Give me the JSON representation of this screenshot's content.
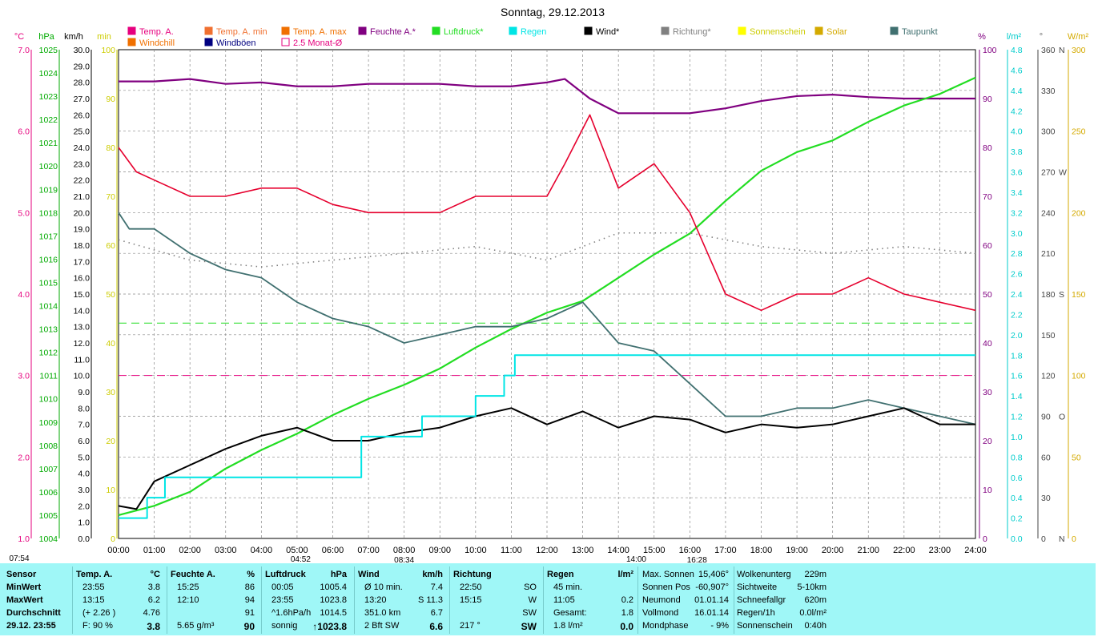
{
  "title": "Sonntag, 29.12.2013",
  "legend": [
    {
      "label": "Temp. A.",
      "color": "#e6007e",
      "row": 0,
      "col": 0
    },
    {
      "label": "Temp. A. min",
      "color": "#f07030",
      "row": 0,
      "col": 1
    },
    {
      "label": "Temp. A. max",
      "color": "#f07000",
      "row": 0,
      "col": 2
    },
    {
      "label": "Feuchte A.*",
      "color": "#800080",
      "row": 0,
      "col": 3
    },
    {
      "label": "Luftdruck*",
      "color": "#22dd22",
      "row": 0,
      "col": 4
    },
    {
      "label": "Regen",
      "color": "#00e5e5",
      "row": 0,
      "col": 5
    },
    {
      "label": "Wind*",
      "color": "#000000",
      "row": 0,
      "col": 6
    },
    {
      "label": "Richtung*",
      "color": "#808080",
      "row": 0,
      "col": 7
    },
    {
      "label": "Sonnenschein",
      "color": "#ffff00",
      "row": 0,
      "col": 8
    },
    {
      "label": "Solar",
      "color": "#d4aa00",
      "row": 0,
      "col": 9
    },
    {
      "label": "Taupunkt",
      "color": "#407070",
      "row": 0,
      "col": 10
    },
    {
      "label": "Windchill",
      "color": "#f07000",
      "row": 1,
      "col": 0
    },
    {
      "label": "Windböen",
      "color": "#000080",
      "row": 1,
      "col": 1
    },
    {
      "label": "2.5 Monat-Ø",
      "color": "#e6007e",
      "row": 1,
      "col": 2
    }
  ],
  "axis_units": {
    "temp": "°C",
    "press": "hPa",
    "wind": "km/h",
    "min": "min",
    "hum": "%",
    "rain": "l/m²",
    "dir": "°",
    "solar": "W/m²"
  },
  "time_labels": [
    "00:00",
    "01:00",
    "02:00",
    "03:00",
    "04:00",
    "05:00",
    "06:00",
    "07:00",
    "08:00",
    "09:00",
    "10:00",
    "11:00",
    "12:00",
    "13:00",
    "14:00",
    "15:00",
    "16:00",
    "17:00",
    "18:00",
    "19:00",
    "20:00",
    "21:00",
    "22:00",
    "23:00",
    "24:00"
  ],
  "sun_markers": [
    {
      "label": "07:54",
      "hour": -0.3
    },
    {
      "label": "04:52",
      "hour": 5.1
    },
    {
      "label": "08:34",
      "hour": 8.0
    },
    {
      "label": "14:00",
      "hour": 14.5
    },
    {
      "label": "16:28",
      "hour": 16.2
    }
  ],
  "chart_data": {
    "type": "line",
    "title": "Sonntag, 29.12.2013",
    "x_range_hours": [
      0,
      24
    ],
    "axes": {
      "temp_c": {
        "range": [
          1.0,
          7.0
        ],
        "ticks": [
          "1.0",
          "2.0",
          "3.0",
          "4.0",
          "5.0",
          "6.0",
          "7.0"
        ]
      },
      "pressure_hpa": {
        "range": [
          1004,
          1025
        ],
        "ticks": [
          "1004",
          "1005",
          "1006",
          "1007",
          "1008",
          "1009",
          "1010",
          "1011",
          "1012",
          "1013",
          "1014",
          "1015",
          "1016",
          "1017",
          "1018",
          "1019",
          "1020",
          "1021",
          "1022",
          "1023",
          "1024",
          "1025"
        ]
      },
      "wind_kmh": {
        "range": [
          0,
          30
        ],
        "ticks": [
          "0.0",
          "1.0",
          "2.0",
          "3.0",
          "4.0",
          "5.0",
          "6.0",
          "7.0",
          "8.0",
          "9.0",
          "10.0",
          "11.0",
          "12.0",
          "13.0",
          "14.0",
          "15.0",
          "16.0",
          "17.0",
          "18.0",
          "19.0",
          "20.0",
          "21.0",
          "22.0",
          "23.0",
          "24.0",
          "25.0",
          "26.0",
          "27.0",
          "28.0",
          "29.0",
          "30.0"
        ]
      },
      "sunshine_min": {
        "range": [
          0,
          100
        ],
        "ticks": [
          "0",
          "10",
          "20",
          "30",
          "40",
          "50",
          "60",
          "70",
          "80",
          "90",
          "100"
        ]
      },
      "humidity_pct": {
        "range": [
          0,
          100
        ],
        "ticks": [
          "0",
          "10",
          "20",
          "30",
          "40",
          "50",
          "60",
          "70",
          "80",
          "90",
          "100"
        ]
      },
      "rain_lm2": {
        "range": [
          0,
          4.8
        ],
        "ticks": [
          "0.0",
          "0.2",
          "0.4",
          "0.6",
          "0.8",
          "1.0",
          "1.2",
          "1.4",
          "1.6",
          "1.8",
          "2.0",
          "2.2",
          "2.4",
          "2.6",
          "2.8",
          "3.0",
          "3.2",
          "3.4",
          "3.6",
          "3.8",
          "4.0",
          "4.2",
          "4.4",
          "4.6",
          "4.8"
        ]
      },
      "direction_deg": {
        "range": [
          0,
          360
        ],
        "ticks": [
          "0",
          "30",
          "60",
          "90",
          "120",
          "150",
          "180",
          "210",
          "240",
          "270",
          "300",
          "330",
          "360"
        ],
        "labels": {
          "0": "N",
          "90": "O",
          "180": "S",
          "270": "W",
          "360": "N"
        }
      },
      "solar_wm2": {
        "range": [
          0,
          300
        ],
        "ticks": [
          "0",
          "50",
          "100",
          "150",
          "200",
          "250",
          "300"
        ]
      }
    },
    "series": [
      {
        "name": "Feuchte A.*",
        "axis": "humidity_pct",
        "points": [
          [
            0,
            93.5
          ],
          [
            1,
            93.5
          ],
          [
            2,
            94
          ],
          [
            3,
            93
          ],
          [
            4,
            93.3
          ],
          [
            5,
            92.5
          ],
          [
            6,
            92.5
          ],
          [
            7,
            93
          ],
          [
            8,
            93
          ],
          [
            9,
            93
          ],
          [
            10,
            92.5
          ],
          [
            11,
            92.5
          ],
          [
            12,
            93.3
          ],
          [
            12.5,
            94
          ],
          [
            13.2,
            90
          ],
          [
            14,
            87
          ],
          [
            15,
            87
          ],
          [
            16,
            87
          ],
          [
            17,
            88
          ],
          [
            18,
            89.5
          ],
          [
            19,
            90.5
          ],
          [
            20,
            90.8
          ],
          [
            21,
            90.3
          ],
          [
            22,
            90
          ],
          [
            23,
            90
          ],
          [
            24,
            90
          ]
        ]
      },
      {
        "name": "Luftdruck*",
        "axis": "pressure_hpa",
        "points": [
          [
            0,
            1005
          ],
          [
            1,
            1005.4
          ],
          [
            2,
            1006
          ],
          [
            3,
            1007
          ],
          [
            4,
            1007.8
          ],
          [
            5,
            1008.5
          ],
          [
            6,
            1009.3
          ],
          [
            7,
            1010
          ],
          [
            8,
            1010.6
          ],
          [
            9,
            1011.3
          ],
          [
            10,
            1012.2
          ],
          [
            11,
            1013
          ],
          [
            12,
            1013.7
          ],
          [
            13,
            1014.2
          ],
          [
            14,
            1015.2
          ],
          [
            15,
            1016.2
          ],
          [
            16,
            1017.1
          ],
          [
            17,
            1018.5
          ],
          [
            18,
            1019.8
          ],
          [
            19,
            1020.6
          ],
          [
            20,
            1021.1
          ],
          [
            21,
            1021.9
          ],
          [
            22,
            1022.6
          ],
          [
            23,
            1023.1
          ],
          [
            24,
            1023.8
          ]
        ]
      },
      {
        "name": "Temp. A.",
        "axis": "temp_c",
        "points": [
          [
            0,
            5.8
          ],
          [
            0.5,
            5.5
          ],
          [
            1,
            5.4
          ],
          [
            2,
            5.2
          ],
          [
            3,
            5.2
          ],
          [
            4,
            5.3
          ],
          [
            5,
            5.3
          ],
          [
            6,
            5.1
          ],
          [
            7,
            5.0
          ],
          [
            8,
            5.0
          ],
          [
            9,
            5.0
          ],
          [
            10,
            5.2
          ],
          [
            11,
            5.2
          ],
          [
            12,
            5.2
          ],
          [
            12.5,
            5.6
          ],
          [
            13.2,
            6.2
          ],
          [
            14,
            5.3
          ],
          [
            15,
            5.6
          ],
          [
            16,
            5.0
          ],
          [
            17,
            4.0
          ],
          [
            18,
            3.8
          ],
          [
            19,
            4.0
          ],
          [
            20,
            4.0
          ],
          [
            21,
            4.2
          ],
          [
            22,
            4.0
          ],
          [
            23,
            3.9
          ],
          [
            24,
            3.8
          ]
        ]
      },
      {
        "name": "Taupunkt",
        "axis": "temp_c",
        "points": [
          [
            0,
            5.0
          ],
          [
            0.3,
            4.8
          ],
          [
            1,
            4.8
          ],
          [
            2,
            4.5
          ],
          [
            3,
            4.3
          ],
          [
            4,
            4.2
          ],
          [
            5,
            3.9
          ],
          [
            6,
            3.7
          ],
          [
            7,
            3.6
          ],
          [
            8,
            3.4
          ],
          [
            9,
            3.5
          ],
          [
            10,
            3.6
          ],
          [
            11,
            3.6
          ],
          [
            12,
            3.7
          ],
          [
            13,
            3.9
          ],
          [
            14,
            3.4
          ],
          [
            15,
            3.3
          ],
          [
            16,
            2.9
          ],
          [
            17,
            2.5
          ],
          [
            18,
            2.5
          ],
          [
            19,
            2.6
          ],
          [
            20,
            2.6
          ],
          [
            21,
            2.7
          ],
          [
            22,
            2.6
          ],
          [
            23,
            2.5
          ],
          [
            24,
            2.4
          ]
        ]
      },
      {
        "name": "Wind*",
        "axis": "wind_kmh",
        "points": [
          [
            0,
            2.0
          ],
          [
            0.5,
            1.8
          ],
          [
            1,
            3.5
          ],
          [
            2,
            4.5
          ],
          [
            3,
            5.5
          ],
          [
            4,
            6.3
          ],
          [
            5,
            6.8
          ],
          [
            6,
            6.0
          ],
          [
            7,
            6.0
          ],
          [
            8,
            6.5
          ],
          [
            9,
            6.8
          ],
          [
            10,
            7.5
          ],
          [
            11,
            8.0
          ],
          [
            12,
            7.0
          ],
          [
            13,
            7.8
          ],
          [
            14,
            6.8
          ],
          [
            15,
            7.5
          ],
          [
            16,
            7.3
          ],
          [
            17,
            6.5
          ],
          [
            18,
            7.0
          ],
          [
            19,
            6.8
          ],
          [
            20,
            7.0
          ],
          [
            21,
            7.5
          ],
          [
            22,
            8.0
          ],
          [
            23,
            7.0
          ],
          [
            24,
            7.0
          ]
        ]
      },
      {
        "name": "Regen",
        "axis": "rain_lm2",
        "points": [
          [
            0,
            0.2
          ],
          [
            0.8,
            0.4
          ],
          [
            1.3,
            0.6
          ],
          [
            6.5,
            0.6
          ],
          [
            6.8,
            1.0
          ],
          [
            8.5,
            1.2
          ],
          [
            9.5,
            1.2
          ],
          [
            10,
            1.4
          ],
          [
            10.8,
            1.6
          ],
          [
            11.1,
            1.8
          ],
          [
            24,
            1.8
          ]
        ]
      },
      {
        "name": "Richtung*",
        "axis": "direction_deg",
        "points": [
          [
            0,
            220
          ],
          [
            2,
            205
          ],
          [
            4,
            200
          ],
          [
            6,
            205
          ],
          [
            8,
            210
          ],
          [
            10,
            215
          ],
          [
            12,
            205
          ],
          [
            14,
            225
          ],
          [
            16,
            225
          ],
          [
            18,
            215
          ],
          [
            20,
            210
          ],
          [
            22,
            215
          ],
          [
            24,
            210
          ]
        ]
      }
    ],
    "reference_lines": [
      {
        "axis": "temp_c",
        "value": 3.0,
        "color": "#e6007e",
        "style": "dashed"
      },
      {
        "axis": "pressure_hpa",
        "value": 1013.25,
        "color": "#22dd22",
        "style": "dashed"
      }
    ]
  },
  "footer": {
    "columns": [
      {
        "header": "Sensor",
        "rows": [
          "MinWert",
          "MaxWert",
          "Durchschnitt",
          "29.12. 23:55"
        ]
      },
      {
        "header": "Temp. A.",
        "unit": "°C",
        "rows": [
          [
            "23:55",
            "3.8"
          ],
          [
            "13:15",
            "6.2"
          ],
          [
            "(+ 2.26 )",
            "4.76"
          ],
          [
            "F: 90 %",
            "3.8"
          ]
        ]
      },
      {
        "header": "Feuchte A.",
        "unit": "%",
        "rows": [
          [
            "15:25",
            "86"
          ],
          [
            "12:10",
            "94"
          ],
          [
            "",
            "91"
          ],
          [
            "5.65 g/m³",
            "90"
          ]
        ]
      },
      {
        "header": "Luftdruck",
        "unit": "hPa",
        "rows": [
          [
            "00:05",
            "1005.4"
          ],
          [
            "23:55",
            "1023.8"
          ],
          [
            "^1.6hPa/h",
            "1014.5"
          ],
          [
            "sonnig",
            "↑1023.8"
          ]
        ]
      },
      {
        "header": "Wind",
        "unit": "km/h",
        "rows": [
          [
            "Ø 10 min.",
            "7.4"
          ],
          [
            "13:20",
            "S 11.3"
          ],
          [
            "351.0 km",
            "6.7"
          ],
          [
            "2 Bft SW",
            "6.6"
          ]
        ]
      },
      {
        "header": "Richtung",
        "unit": "",
        "rows": [
          [
            "22:50",
            "SO"
          ],
          [
            "15:15",
            "W"
          ],
          [
            "",
            "SW"
          ],
          [
            "217 °",
            "SW"
          ]
        ]
      },
      {
        "header": "Regen",
        "unit": "l/m²",
        "rows": [
          [
            "45 min.",
            ""
          ],
          [
            "11:05",
            "0.2"
          ],
          [
            "Gesamt:",
            "1.8"
          ],
          [
            "1.8 l/m²",
            "0.0"
          ]
        ]
      }
    ],
    "astro": [
      [
        "Max. Sonnen",
        "15,406°"
      ],
      [
        "Sonnen Pos",
        "-60,907°"
      ],
      [
        "Neumond",
        "01.01.14"
      ],
      [
        "Vollmond",
        "16.01.14"
      ],
      [
        "Mondphase",
        "- 9%"
      ]
    ],
    "extra": [
      [
        "Wolkenunterg",
        "229m"
      ],
      [
        "Sichtweite",
        "5-10km"
      ],
      [
        "Schneefallgr",
        "620m"
      ],
      [
        "Regen/1h",
        "0.0l/m²"
      ],
      [
        "Sonnenschein",
        "0:40h"
      ]
    ]
  }
}
